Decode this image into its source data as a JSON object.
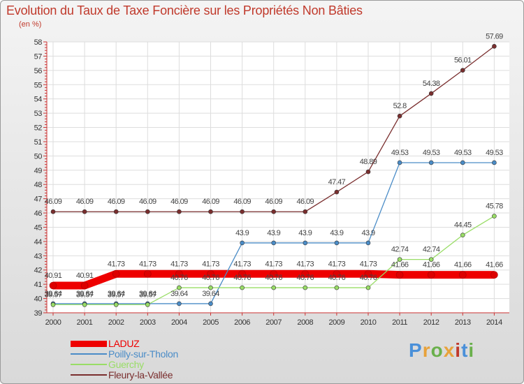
{
  "title": "Evolution du Taux de Taxe Foncière sur les Propriétés Non Bâties",
  "unit_label": "(en %)",
  "watermark": {
    "text": "Proxiti",
    "colors": [
      "#4a90d9",
      "#e8a23a",
      "#6ab04c",
      "#e8a23a",
      "#c0392b",
      "#4a90d9",
      "#6ab04c"
    ]
  },
  "chart_data": {
    "type": "line",
    "title": "Evolution du Taux de Taxe Foncière sur les Propriétés Non Bâties",
    "ylabel": "(en %)",
    "xlabel": "",
    "ylim": [
      39,
      58
    ],
    "yticks": [
      39,
      40,
      41,
      42,
      43,
      44,
      45,
      46,
      47,
      48,
      49,
      50,
      51,
      52,
      53,
      54,
      55,
      56,
      57,
      58
    ],
    "grid": true,
    "legend_position": "bottom-left",
    "categories": [
      "2000",
      "2001",
      "2002",
      "2003",
      "2004",
      "2005",
      "2006",
      "2007",
      "2008",
      "2009",
      "2010",
      "2011",
      "2012",
      "2013",
      "2014"
    ],
    "series": [
      {
        "name": "LADUZ",
        "color": "#ee0000",
        "thick": true,
        "values": [
          40.91,
          40.91,
          41.73,
          41.73,
          41.73,
          41.73,
          41.73,
          41.73,
          41.73,
          41.73,
          41.73,
          41.66,
          41.66,
          41.66,
          41.66
        ],
        "labels": [
          "40.91",
          "40.91",
          "41.73",
          "41.73",
          "41.73",
          "41.73",
          "41.73",
          "41.73",
          "41.73",
          "41.73",
          "41.73",
          "41.66",
          "41.66",
          "41.66",
          "41.66"
        ]
      },
      {
        "name": "Poilly-sur-Tholon",
        "color": "#4a8cc7",
        "thick": false,
        "values": [
          39.64,
          39.64,
          39.64,
          39.64,
          39.64,
          39.64,
          43.9,
          43.9,
          43.9,
          43.9,
          43.9,
          49.53,
          49.53,
          49.53,
          49.53
        ],
        "labels": [
          "39.64",
          "39.64",
          "39.64",
          "39.64",
          "39.64",
          "39.64",
          "43.9",
          "43.9",
          "43.9",
          "43.9",
          "43.9",
          "49.53",
          "49.53",
          "49.53",
          "49.53"
        ]
      },
      {
        "name": "Guerchy",
        "color": "#99dd66",
        "thick": false,
        "values": [
          39.57,
          39.57,
          39.57,
          39.57,
          40.76,
          40.76,
          40.76,
          40.76,
          40.76,
          40.76,
          40.76,
          42.74,
          42.74,
          44.45,
          45.78
        ],
        "labels": [
          "39.57",
          "39.57",
          "39.57",
          "39.57",
          "40.76",
          "40.76",
          "40.76",
          "40.76",
          "40.76",
          "40.76",
          "40.76",
          "42.74",
          "42.74",
          "44.45",
          "45.78"
        ]
      },
      {
        "name": "Fleury-la-Vallée",
        "color": "#7a2e2e",
        "thick": false,
        "values": [
          46.09,
          46.09,
          46.09,
          46.09,
          46.09,
          46.09,
          46.09,
          46.09,
          46.09,
          47.47,
          48.89,
          52.8,
          54.38,
          56.01,
          57.69
        ],
        "labels": [
          "46.09",
          "46.09",
          "46.09",
          "46.09",
          "46.09",
          "46.09",
          "46.09",
          "46.09",
          "46.09",
          "47.47",
          "48.89",
          "52.8",
          "54.38",
          "56.01",
          "57.69"
        ]
      }
    ]
  }
}
